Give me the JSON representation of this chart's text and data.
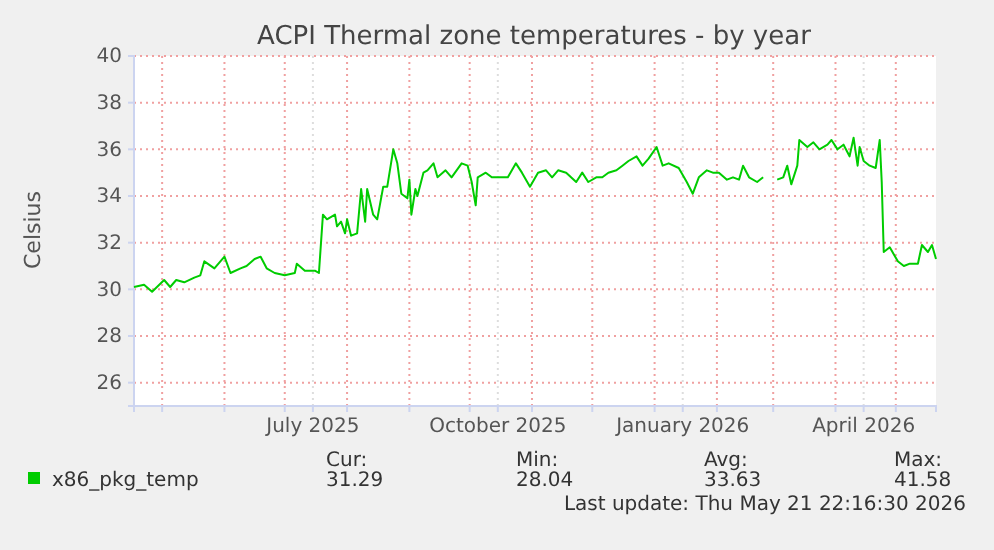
{
  "chart_data": {
    "type": "line",
    "title": "ACPI Thermal zone temperatures - by year",
    "ylabel": "Celsius",
    "xlim": [
      "2025-04-17",
      "2026-05-21"
    ],
    "ylim": [
      25,
      40
    ],
    "yticks": [
      26,
      28,
      30,
      32,
      34,
      36,
      38,
      40
    ],
    "xticks": [
      {
        "value": "2025-05-01",
        "label": null
      },
      {
        "value": "2025-06-01",
        "label": null
      },
      {
        "value": "2025-07-01",
        "label": null
      },
      {
        "value": "2025-07-15",
        "label": "July 2025"
      },
      {
        "value": "2025-08-01",
        "label": null
      },
      {
        "value": "2025-09-01",
        "label": null
      },
      {
        "value": "2025-10-01",
        "label": null
      },
      {
        "value": "2025-10-15",
        "label": "October 2025"
      },
      {
        "value": "2025-11-01",
        "label": null
      },
      {
        "value": "2025-12-01",
        "label": null
      },
      {
        "value": "2026-01-01",
        "label": null
      },
      {
        "value": "2026-01-15",
        "label": "January 2026"
      },
      {
        "value": "2026-02-01",
        "label": null
      },
      {
        "value": "2026-03-01",
        "label": null
      },
      {
        "value": "2026-04-01",
        "label": null
      },
      {
        "value": "2026-04-15",
        "label": "April 2026"
      },
      {
        "value": "2026-05-01",
        "label": null
      }
    ],
    "grid": true,
    "legend": "bottom",
    "line_style": "solid",
    "annotations": [
      "Cur:",
      "Min:",
      "Avg:",
      "Max:",
      "31.29",
      "28.04",
      "33.63",
      "41.58",
      "Last update: Thu May 21 22:16:30 2026"
    ],
    "series": [
      {
        "name": "x86_pkg_temp",
        "color": "#00cc00",
        "x": [
          "2025-04-17",
          "2025-04-22",
          "2025-04-26",
          "2025-05-02",
          "2025-05-05",
          "2025-05-08",
          "2025-05-12",
          "2025-05-17",
          "2025-05-20",
          "2025-05-22",
          "2025-05-27",
          "2025-06-01",
          "2025-06-04",
          "2025-06-09",
          "2025-06-12",
          "2025-06-16",
          "2025-06-19",
          "2025-06-22",
          "2025-06-26",
          "2025-07-01",
          "2025-07-06",
          "2025-07-07",
          "2025-07-11",
          "2025-07-16",
          "2025-07-18",
          "2025-07-20",
          "2025-07-22",
          "2025-07-26",
          "2025-07-27",
          "2025-07-29",
          "2025-07-31",
          "2025-08-01",
          "2025-08-03",
          "2025-08-06",
          "2025-08-08",
          "2025-08-10",
          "2025-08-11",
          "2025-08-14",
          "2025-08-16",
          "2025-08-19",
          "2025-08-21",
          "2025-08-24",
          "2025-08-26",
          "2025-08-28",
          "2025-08-31",
          "2025-09-01",
          "2025-09-02",
          "2025-09-04",
          "2025-09-05",
          "2025-09-08",
          "2025-09-10",
          "2025-09-13",
          "2025-09-15",
          "2025-09-19",
          "2025-09-22",
          "2025-09-27",
          "2025-09-30",
          "2025-10-02",
          "2025-10-04",
          "2025-10-05",
          "2025-10-09",
          "2025-10-12",
          "2025-10-17",
          "2025-10-20",
          "2025-10-24",
          "2025-10-27",
          "2025-10-31",
          "2025-11-04",
          "2025-11-08",
          "2025-11-11",
          "2025-11-14",
          "2025-11-18",
          "2025-11-23",
          "2025-11-26",
          "2025-11-29",
          "2025-12-03",
          "2025-12-06",
          "2025-12-09",
          "2025-12-13",
          "2025-12-16",
          "2025-12-19",
          "2025-12-23",
          "2025-12-26",
          "2025-12-29",
          "2026-01-02",
          "2026-01-05",
          "2026-01-08",
          "2026-01-13",
          "2026-01-17",
          "2026-01-20",
          "2026-01-23",
          "2026-01-27",
          "2026-01-30",
          "2026-02-02",
          "2026-02-06",
          "2026-02-09",
          "2026-02-12",
          "2026-02-14",
          "2026-02-17",
          "2026-02-21",
          "2026-02-24",
          "2026-02-27",
          "2026-03-03",
          "2026-03-06",
          "2026-03-08",
          "2026-03-10",
          "2026-03-13",
          "2026-03-14",
          "2026-03-18",
          "2026-03-21",
          "2026-03-24",
          "2026-03-28",
          "2026-03-30",
          "2026-04-02",
          "2026-04-05",
          "2026-04-08",
          "2026-04-10",
          "2026-04-12",
          "2026-04-13",
          "2026-04-15",
          "2026-04-18",
          "2026-04-21",
          "2026-04-23",
          "2026-04-24",
          "2026-04-25",
          "2026-04-28",
          "2026-05-02",
          "2026-05-05",
          "2026-05-08",
          "2026-05-12",
          "2026-05-14",
          "2026-05-17",
          "2026-05-19",
          "2026-05-21"
        ],
        "values": [
          30.1,
          30.2,
          29.9,
          30.4,
          30.1,
          30.4,
          30.3,
          30.5,
          30.6,
          31.2,
          30.9,
          31.4,
          30.7,
          30.9,
          31.0,
          31.3,
          31.4,
          30.9,
          30.7,
          30.6,
          30.7,
          31.1,
          30.8,
          30.8,
          30.7,
          33.2,
          33.0,
          33.2,
          32.7,
          32.9,
          32.4,
          33.0,
          32.3,
          32.4,
          34.3,
          32.9,
          34.3,
          33.2,
          33.0,
          34.4,
          34.4,
          36.0,
          35.4,
          34.1,
          33.9,
          34.7,
          33.2,
          34.3,
          34.0,
          35.0,
          35.1,
          35.4,
          34.8,
          35.1,
          34.8,
          35.4,
          35.3,
          34.6,
          33.6,
          34.8,
          35.0,
          34.8,
          34.8,
          34.8,
          35.4,
          35.0,
          34.4,
          35.0,
          35.1,
          34.8,
          35.1,
          35.0,
          34.6,
          35.0,
          34.6,
          34.8,
          34.8,
          35.0,
          35.1,
          35.3,
          35.5,
          35.7,
          35.3,
          35.6,
          36.1,
          35.3,
          35.4,
          35.2,
          34.6,
          34.1,
          34.8,
          35.1,
          35.0,
          35.0,
          34.7,
          34.8,
          34.7,
          35.3,
          34.8,
          34.6,
          34.8,
          null,
          34.7,
          34.8,
          35.3,
          34.5,
          35.3,
          36.4,
          36.1,
          36.3,
          36.0,
          36.2,
          36.4,
          36.0,
          36.2,
          35.7,
          36.5,
          35.3,
          36.1,
          35.5,
          35.3,
          35.2,
          36.4,
          34.6,
          31.6,
          31.8,
          31.2,
          31.0,
          31.1,
          31.1,
          31.9,
          31.6,
          31.9,
          31.3
        ]
      }
    ]
  }
}
